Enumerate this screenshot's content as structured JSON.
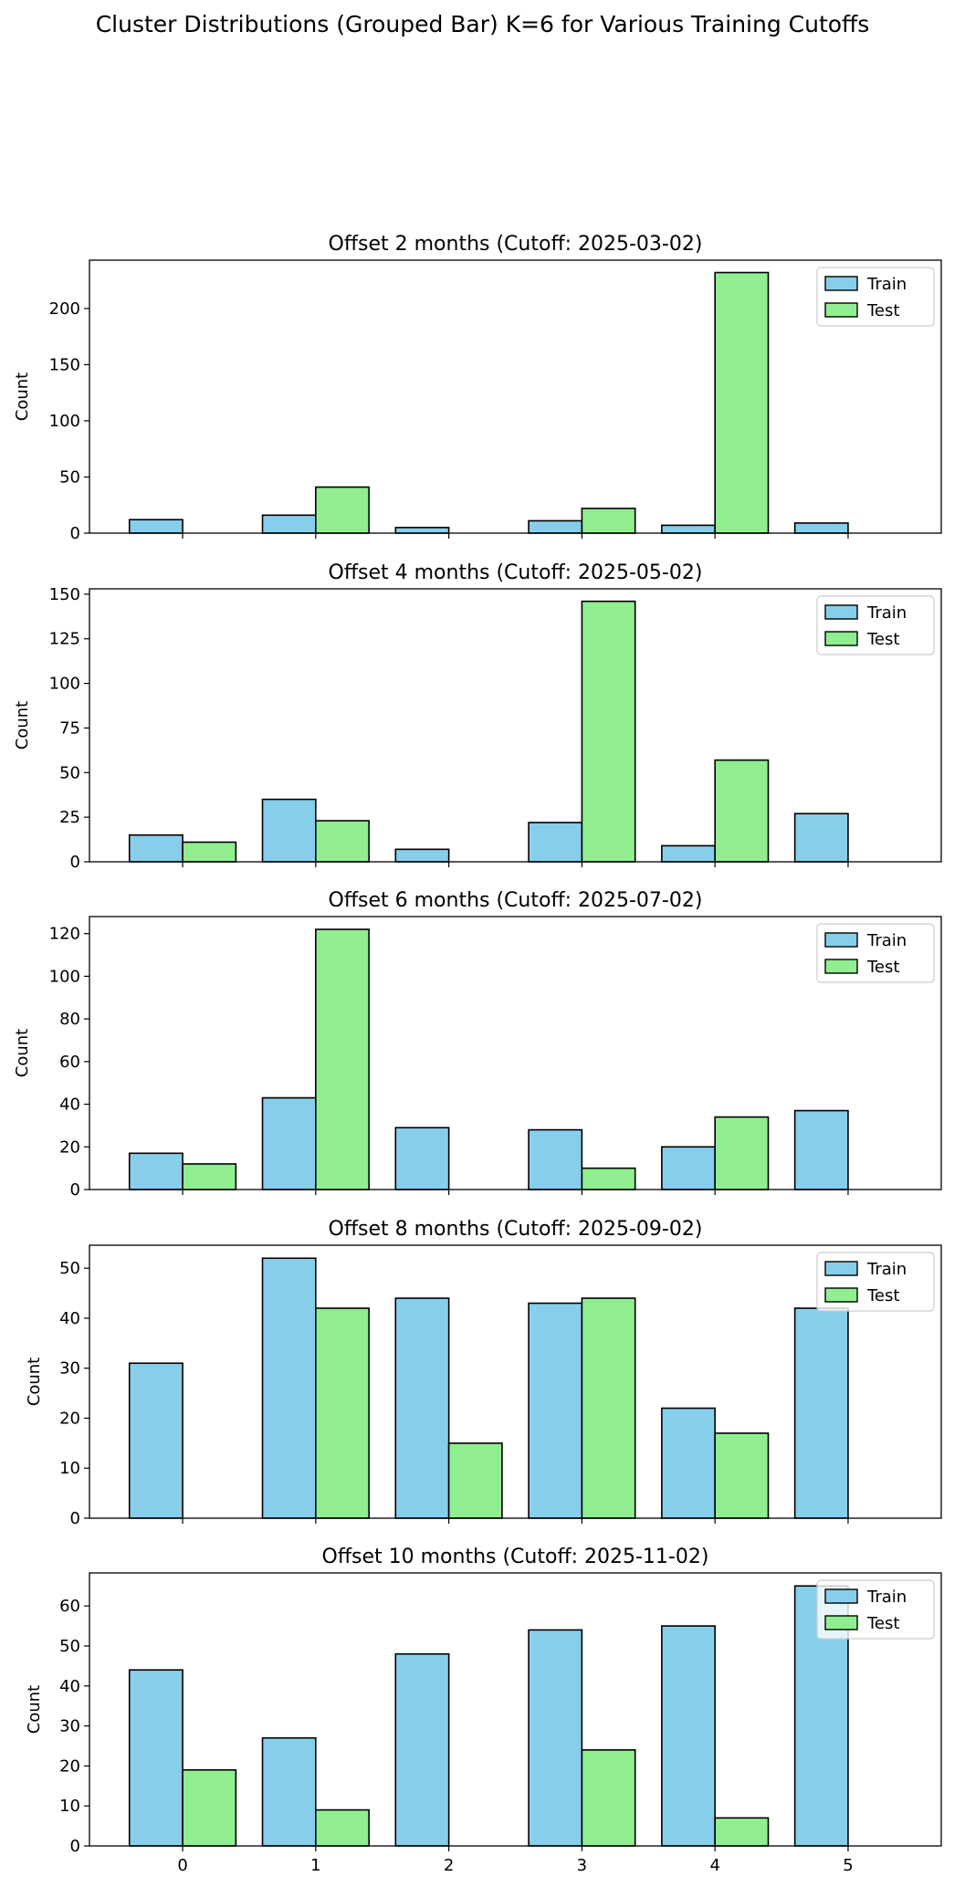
{
  "figure": {
    "suptitle": "Cluster Distributions (Grouped Bar) K=6 for Various Training Cutoffs"
  },
  "colors": {
    "train": "#87ceeb",
    "test": "#90ee90",
    "edge": "#000000"
  },
  "chart_data": [
    {
      "type": "bar",
      "title": "Offset 2 months (Cutoff: 2025-03-02)",
      "ylabel": "Count",
      "xlabel": "",
      "categories": [
        "0",
        "1",
        "2",
        "3",
        "4",
        "5"
      ],
      "ylim": [
        0,
        243
      ],
      "yticks": [
        0,
        50,
        100,
        150,
        200
      ],
      "series": [
        {
          "name": "Train",
          "values": [
            12,
            16,
            5,
            11,
            7,
            9
          ]
        },
        {
          "name": "Test",
          "values": [
            0,
            41,
            0,
            22,
            232,
            0
          ]
        }
      ],
      "legend": "top-right",
      "show_xticklabels": false
    },
    {
      "type": "bar",
      "title": "Offset 4 months (Cutoff: 2025-05-02)",
      "ylabel": "Count",
      "xlabel": "",
      "categories": [
        "0",
        "1",
        "2",
        "3",
        "4",
        "5"
      ],
      "ylim": [
        0,
        153
      ],
      "yticks": [
        0,
        25,
        50,
        75,
        100,
        125,
        150
      ],
      "series": [
        {
          "name": "Train",
          "values": [
            15,
            35,
            7,
            22,
            9,
            27
          ]
        },
        {
          "name": "Test",
          "values": [
            11,
            23,
            0,
            146,
            57,
            0
          ]
        }
      ],
      "legend": "top-right",
      "show_xticklabels": false
    },
    {
      "type": "bar",
      "title": "Offset 6 months (Cutoff: 2025-07-02)",
      "ylabel": "Count",
      "xlabel": "",
      "categories": [
        "0",
        "1",
        "2",
        "3",
        "4",
        "5"
      ],
      "ylim": [
        0,
        128
      ],
      "yticks": [
        0,
        20,
        40,
        60,
        80,
        100,
        120
      ],
      "series": [
        {
          "name": "Train",
          "values": [
            17,
            43,
            29,
            28,
            20,
            37
          ]
        },
        {
          "name": "Test",
          "values": [
            12,
            122,
            0,
            10,
            34,
            0
          ]
        }
      ],
      "legend": "top-right",
      "show_xticklabels": false
    },
    {
      "type": "bar",
      "title": "Offset 8 months (Cutoff: 2025-09-02)",
      "ylabel": "Count",
      "xlabel": "",
      "categories": [
        "0",
        "1",
        "2",
        "3",
        "4",
        "5"
      ],
      "ylim": [
        0,
        54.6
      ],
      "yticks": [
        0,
        10,
        20,
        30,
        40,
        50
      ],
      "series": [
        {
          "name": "Train",
          "values": [
            31,
            52,
            44,
            43,
            22,
            42
          ]
        },
        {
          "name": "Test",
          "values": [
            0,
            42,
            15,
            44,
            17,
            0
          ]
        }
      ],
      "legend": "top-right",
      "show_xticklabels": false
    },
    {
      "type": "bar",
      "title": "Offset 10 months (Cutoff: 2025-11-02)",
      "ylabel": "Count",
      "xlabel": "",
      "categories": [
        "0",
        "1",
        "2",
        "3",
        "4",
        "5"
      ],
      "ylim": [
        0,
        68.25
      ],
      "yticks": [
        0,
        10,
        20,
        30,
        40,
        50,
        60
      ],
      "series": [
        {
          "name": "Train",
          "values": [
            44,
            27,
            48,
            54,
            55,
            65
          ]
        },
        {
          "name": "Test",
          "values": [
            19,
            9,
            0,
            24,
            7,
            0
          ]
        }
      ],
      "legend": "top-right",
      "show_xticklabels": true
    }
  ]
}
